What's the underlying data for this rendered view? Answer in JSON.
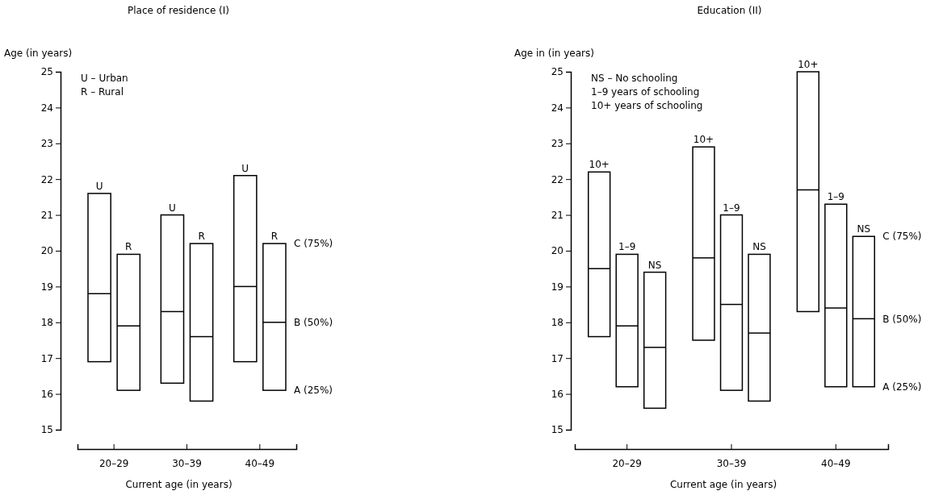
{
  "chart_data": [
    {
      "type": "box",
      "title": "Place of residence (I)",
      "ylabel": "Age (in years)",
      "xlabel": "Current age (in years)",
      "categories": [
        "20–29",
        "30–39",
        "40–49"
      ],
      "ylim": [
        15,
        25
      ],
      "yticks": [
        15,
        16,
        17,
        18,
        19,
        20,
        21,
        22,
        23,
        24,
        25
      ],
      "series": [
        {
          "name": "U",
          "color": "#000000",
          "boxes": [
            {
              "low": 16.9,
              "q1": 16.9,
              "median": 18.8,
              "q3": 21.6,
              "high": 21.6
            },
            {
              "low": 16.3,
              "q1": 16.3,
              "median": 18.3,
              "q3": 21.0,
              "high": 21.0
            },
            {
              "low": 16.9,
              "q1": 16.9,
              "median": 19.0,
              "q3": 22.1,
              "high": 22.1
            }
          ]
        },
        {
          "name": "R",
          "color": "#000000",
          "boxes": [
            {
              "low": 16.1,
              "q1": 16.1,
              "median": 17.9,
              "q3": 19.9,
              "high": 19.9
            },
            {
              "low": 15.8,
              "q1": 15.8,
              "median": 17.6,
              "q3": 20.2,
              "high": 20.2
            },
            {
              "low": 16.1,
              "q1": 16.1,
              "median": 18.0,
              "q3": 20.2,
              "high": 20.2
            }
          ]
        }
      ],
      "annotations": [
        "U – Urban",
        "R – Rural",
        "C (75%)",
        "B (50%)",
        "A (25%)"
      ]
    },
    {
      "type": "box",
      "title": "Education (II)",
      "ylabel": "Age in  (in years)",
      "xlabel": "Current age (in years)",
      "categories": [
        "20–29",
        "30–39",
        "40–49"
      ],
      "ylim": [
        15,
        25
      ],
      "yticks": [
        15,
        16,
        17,
        18,
        19,
        20,
        21,
        22,
        23,
        24,
        25
      ],
      "series": [
        {
          "name": "10+",
          "color": "#000000",
          "boxes": [
            {
              "low": 17.6,
              "q1": 17.6,
              "median": 19.5,
              "q3": 22.2,
              "high": 22.2
            },
            {
              "low": 17.5,
              "q1": 17.5,
              "median": 19.8,
              "q3": 22.9,
              "high": 22.9
            },
            {
              "low": 18.3,
              "q1": 18.3,
              "median": 21.7,
              "q3": 25.0,
              "high": 25.0
            }
          ]
        },
        {
          "name": "1–9",
          "color": "#000000",
          "boxes": [
            {
              "low": 16.2,
              "q1": 16.2,
              "median": 17.9,
              "q3": 19.9,
              "high": 19.9
            },
            {
              "low": 16.1,
              "q1": 16.1,
              "median": 18.5,
              "q3": 21.0,
              "high": 21.0
            },
            {
              "low": 16.2,
              "q1": 16.2,
              "median": 18.4,
              "q3": 21.3,
              "high": 21.3
            }
          ]
        },
        {
          "name": "NS",
          "color": "#000000",
          "boxes": [
            {
              "low": 15.6,
              "q1": 15.6,
              "median": 17.3,
              "q3": 19.4,
              "high": 19.4
            },
            {
              "low": 15.8,
              "q1": 15.8,
              "median": 17.7,
              "q3": 19.9,
              "high": 19.9
            },
            {
              "low": 16.2,
              "q1": 16.2,
              "median": 18.1,
              "q3": 20.4,
              "high": 20.4
            }
          ]
        }
      ],
      "annotations": [
        "NS – No schooling",
        "1–9 years of schooling",
        "10+ years of schooling",
        "C (75%)",
        "B (50%)",
        "A (25%)"
      ]
    }
  ]
}
